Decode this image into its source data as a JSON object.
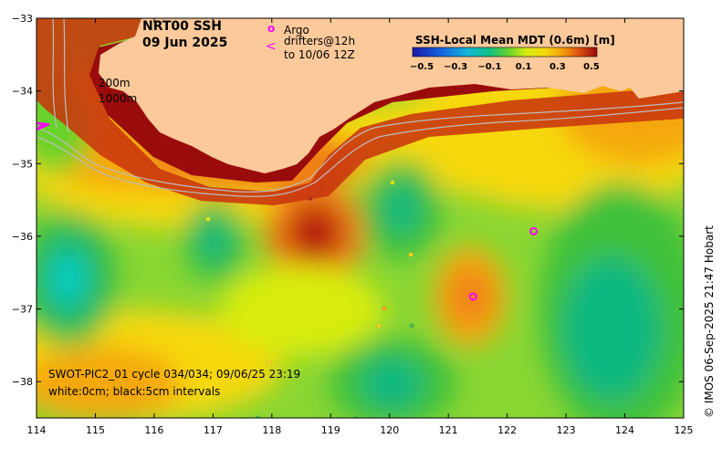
{
  "header": {
    "title": "NRT00 SSH",
    "date": "09 Jun 2025"
  },
  "legend": {
    "argo_symbol": "o",
    "argo_label": "Argo",
    "drifter_symbol": "<",
    "drifter_label_1": "drifters@12h",
    "drifter_label_2": "to 10/06 12Z"
  },
  "colorbar": {
    "title": "SSH-Local Mean MDT (0.6m) [m]",
    "ticks": [
      "−0.5",
      "−0.3",
      "−0.1",
      "0.1",
      "0.3",
      "0.5"
    ]
  },
  "isobaths": {
    "shallow": "200m",
    "deep": "1000m"
  },
  "swath": {
    "line1": "SWOT-PIC2_01 cycle 034/034; 09/06/25 23:19",
    "line2": "white:0cm; black:5cm intervals"
  },
  "credit": "© IMOS 06-Sep-2025 21:47 Hobart",
  "axes": {
    "x_ticks": [
      "114",
      "115",
      "116",
      "117",
      "118",
      "119",
      "120",
      "121",
      "122",
      "123",
      "124",
      "125"
    ],
    "y_ticks": [
      "−33",
      "−34",
      "−35",
      "−36",
      "−37",
      "−38"
    ],
    "lon_range": [
      114,
      125
    ],
    "lat_range": [
      -38.5,
      -33
    ]
  },
  "colors": {
    "land": "#fbc99a",
    "argo": "#ff00ff",
    "drifter": "#ff00ff"
  },
  "argo_floats": [
    {
      "lon": 122.45,
      "lat": -35.93
    },
    {
      "lon": 121.42,
      "lat": -36.83
    }
  ]
}
